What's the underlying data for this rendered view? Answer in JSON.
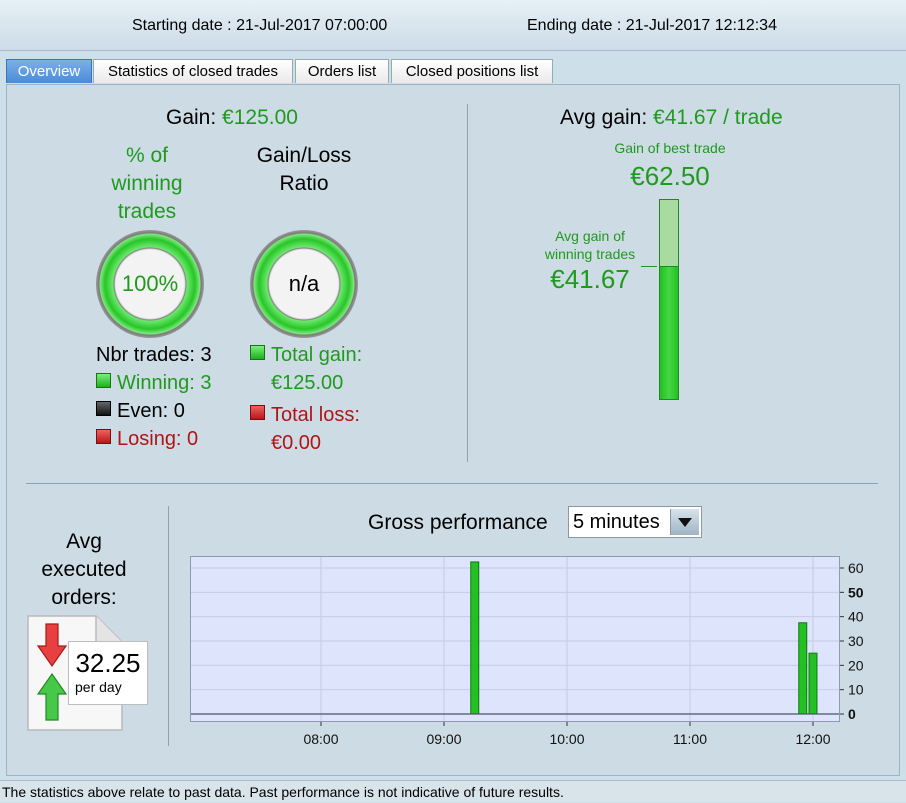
{
  "header": {
    "start_label": "Starting date : 21-Jul-2017 07:00:00",
    "end_label": "Ending date : 21-Jul-2017 12:12:34"
  },
  "tabs": [
    {
      "label": "Overview",
      "active": true
    },
    {
      "label": "Statistics of closed trades",
      "active": false
    },
    {
      "label": "Orders list",
      "active": false
    },
    {
      "label": "Closed positions list",
      "active": false
    }
  ],
  "gain": {
    "label": "Gain:",
    "value": "€125.00"
  },
  "winning_pct": {
    "title_lines": [
      "% of",
      "winning",
      "trades"
    ],
    "value": "100%"
  },
  "gain_loss_ratio": {
    "title_lines": [
      "Gain/Loss",
      "Ratio"
    ],
    "value": "n/a"
  },
  "trades": {
    "nbr": "Nbr trades: 3",
    "winning": "Winning: 3",
    "even": "Even: 0",
    "losing": "Losing: 0"
  },
  "totals": {
    "gain_label": "Total gain:",
    "gain_value": "€125.00",
    "loss_label": "Total loss:",
    "loss_value": "€0.00"
  },
  "avg_gain": {
    "label": "Avg gain:",
    "value": "€41.67 / trade"
  },
  "best_trade": {
    "label": "Gain of best trade",
    "value": "€62.50"
  },
  "avg_winning": {
    "label_lines": [
      "Avg gain of",
      "winning trades"
    ],
    "value": "€41.67",
    "fraction_of_best": 0.667
  },
  "avg_orders": {
    "title_lines": [
      "Avg",
      "executed",
      "orders:"
    ],
    "value": "32.25",
    "unit": "per day"
  },
  "performance": {
    "label": "Gross performance",
    "period": "5 minutes"
  },
  "chart_data": {
    "type": "bar",
    "x_unit": "time of day",
    "x_range": [
      "07:00",
      "12:10"
    ],
    "x_ticks": [
      "08:00",
      "09:00",
      "10:00",
      "11:00",
      "12:00"
    ],
    "y_ticks": [
      0,
      10,
      20,
      30,
      40,
      50,
      60
    ],
    "y_bold_ticks": [
      0,
      50
    ],
    "ylim": [
      0,
      65
    ],
    "bars": [
      {
        "time": "09:15",
        "value": 62.5
      },
      {
        "time": "11:55",
        "value": 37.5
      },
      {
        "time": "12:00",
        "value": 25
      }
    ],
    "bar_color": "#22c022",
    "grid": true
  },
  "footer": {
    "text": "The statistics above relate to past data. Past performance is not indicative of future results."
  },
  "colors": {
    "gain_green": "#1f9a1f",
    "loss_red": "#b01515",
    "tab_active": "#4a8bd8"
  }
}
